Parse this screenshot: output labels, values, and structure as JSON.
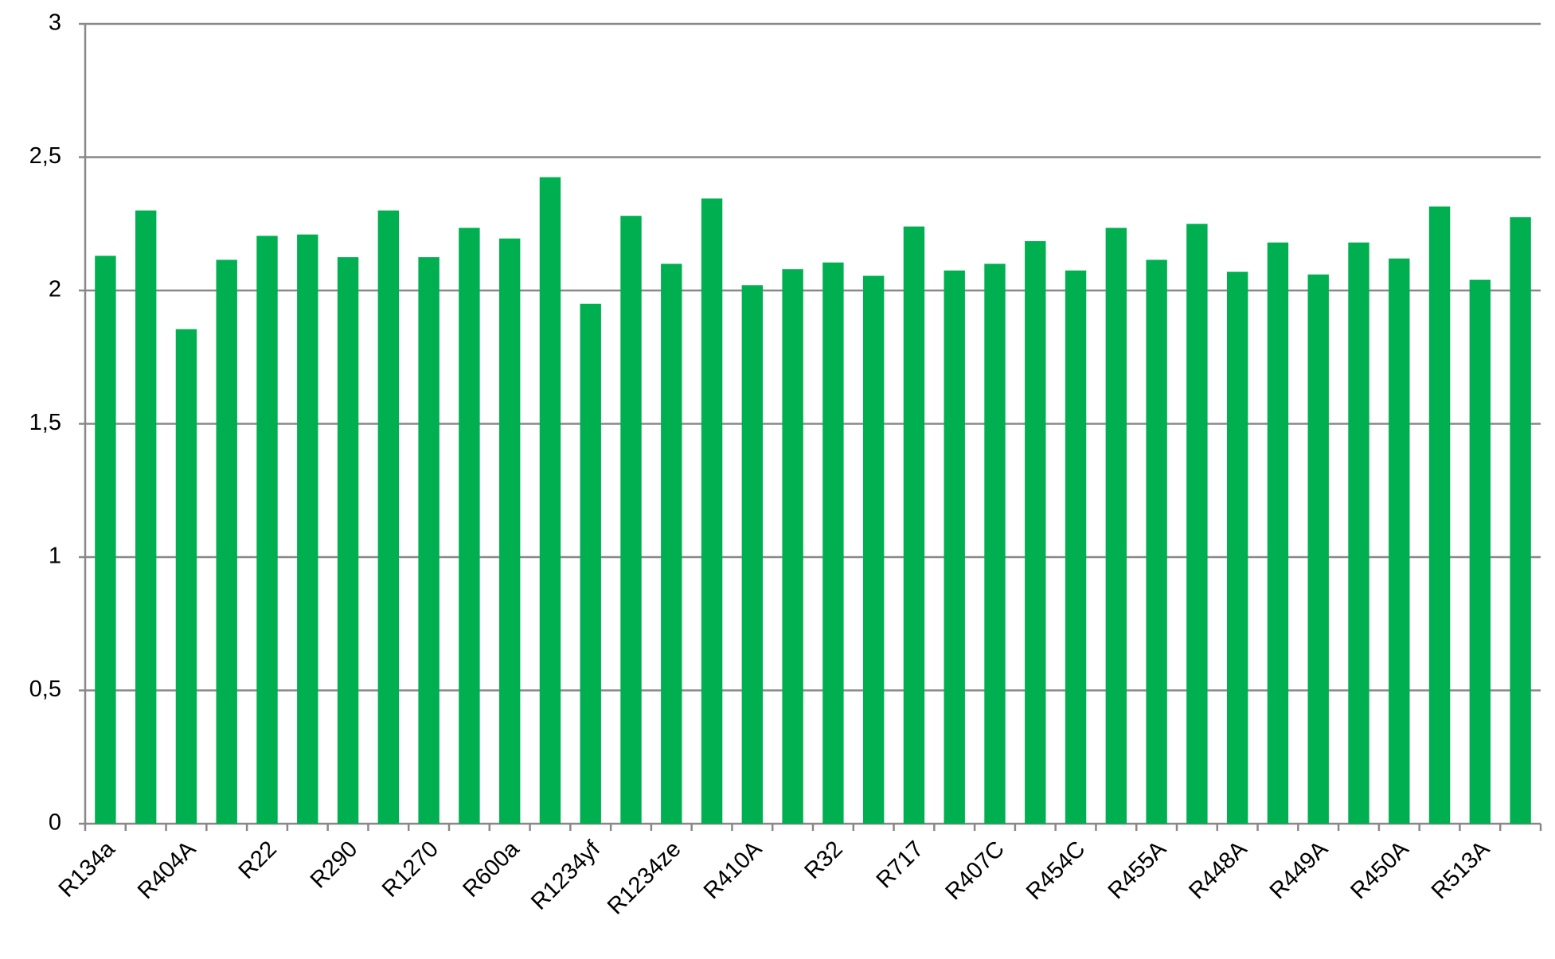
{
  "chart_data": {
    "type": "bar",
    "categories": [
      "R134a",
      null,
      "R404A",
      null,
      "R22",
      null,
      "R290",
      null,
      "R1270",
      null,
      "R600a",
      null,
      "R1234yf",
      null,
      "R1234ze",
      null,
      "R410A",
      null,
      "R32",
      null,
      "R717",
      null,
      "R407C",
      null,
      "R454C",
      null,
      "R455A",
      null,
      "R448A",
      null,
      "R449A",
      null,
      "R450A",
      null,
      "R513A",
      null
    ],
    "values": [
      2.13,
      2.3,
      1.855,
      2.115,
      2.205,
      2.21,
      2.125,
      2.3,
      2.125,
      2.235,
      2.195,
      2.425,
      1.95,
      2.28,
      2.1,
      2.345,
      2.02,
      2.08,
      2.105,
      2.055,
      2.24,
      2.075,
      2.1,
      2.185,
      2.075,
      2.235,
      2.115,
      2.25,
      2.07,
      2.18,
      2.06,
      2.18,
      2.12,
      2.315,
      2.04,
      2.275
    ],
    "color": "#00b050",
    "ylim": [
      0,
      3
    ],
    "yticks": [
      0,
      {
        "value": 0.5,
        "label": "0,5"
      },
      1,
      {
        "value": 1.5,
        "label": "1,5"
      },
      2,
      {
        "value": 2.5,
        "label": "2,5"
      },
      3
    ],
    "grid": true
  }
}
